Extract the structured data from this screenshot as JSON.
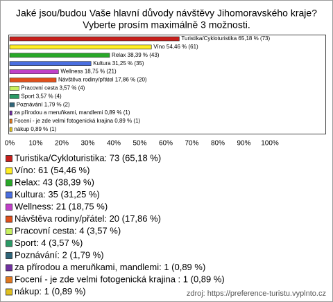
{
  "chart_data": {
    "type": "bar",
    "orientation": "horizontal",
    "title": "Jaké jsou/budou Vaše hlavní důvody návštěvy Jihomoravského kraje?",
    "subtitle": "Vyberte prosím maximálně 3 možnosti.",
    "categories": [
      "Turistika/Cykloturistika",
      "Víno",
      "Relax",
      "Kultura",
      "Wellness",
      "Návštěva rodiny/přátel",
      "Pracovní cesta",
      "Sport",
      "Poznávání",
      "za přírodou a meruňkami, mandlemi",
      "Focení - je zde velmi fotogenická krajina",
      "nákup"
    ],
    "values": [
      65.18,
      54.46,
      38.39,
      31.25,
      18.75,
      17.86,
      3.57,
      3.57,
      1.79,
      0.89,
      0.89,
      0.89
    ],
    "value_labels": [
      "Turistika/Cykloturistika 65,18 % (73)",
      "Víno 54,46 % (61)",
      "Relax 38,39 % (43)",
      "Kultura 31,25 % (35)",
      "Wellness 18,75 % (21)",
      "Návštěva rodiny/přátel 17,86 % (20)",
      "Pracovní cesta 3,57 % (4)",
      "Sport 3,57 % (4)",
      "Poznávání 1,79 % (2)",
      "za přírodou a meruňkami, mandlemi 0,89 % (1)",
      "Focení - je zde velmi fotogenická krajina  0,89 % (1)",
      "nákup 0,89 % (1)"
    ],
    "legend": [
      "Turistika/Cykloturistika: 73 (65,18 %)",
      "Víno: 61 (54,46 %)",
      "Relax: 43 (38,39 %)",
      "Kultura: 35 (31,25 %)",
      "Wellness: 21 (18,75 %)",
      "Návštěva rodiny/přátel: 20 (17,86 %)",
      "Pracovní cesta: 4 (3,57 %)",
      "Sport: 4 (3,57 %)",
      "Poznávání: 2 (1,79 %)",
      "za přírodou a meruňkami, mandlemi: 1 (0,89 %)",
      "Focení - je zde velmi fotogenická krajina : 1 (0,89 %)",
      "nákup: 1 (0,89 %)"
    ],
    "colors": [
      "#c8201c",
      "#ffee22",
      "#28a828",
      "#4a6ee0",
      "#c040c8",
      "#e0501c",
      "#c8f060",
      "#2a9a66",
      "#2e6478",
      "#7030a0",
      "#e07820",
      "#e0c020"
    ],
    "xlim": [
      0,
      122
    ],
    "xticks": [
      {
        "value": 0,
        "label": "0%"
      },
      {
        "value": 10,
        "label": "10%"
      },
      {
        "value": 20,
        "label": "20%"
      },
      {
        "value": 30,
        "label": "30%"
      },
      {
        "value": 40,
        "label": "40%"
      },
      {
        "value": 50,
        "label": "50%"
      },
      {
        "value": 60,
        "label": "60%"
      },
      {
        "value": 70,
        "label": "70%"
      },
      {
        "value": 80,
        "label": "80%"
      },
      {
        "value": 90,
        "label": "90%"
      },
      {
        "value": 100,
        "label": "100%"
      }
    ],
    "source": "zdroj: https://preference-turistu.vyplnto.cz"
  }
}
